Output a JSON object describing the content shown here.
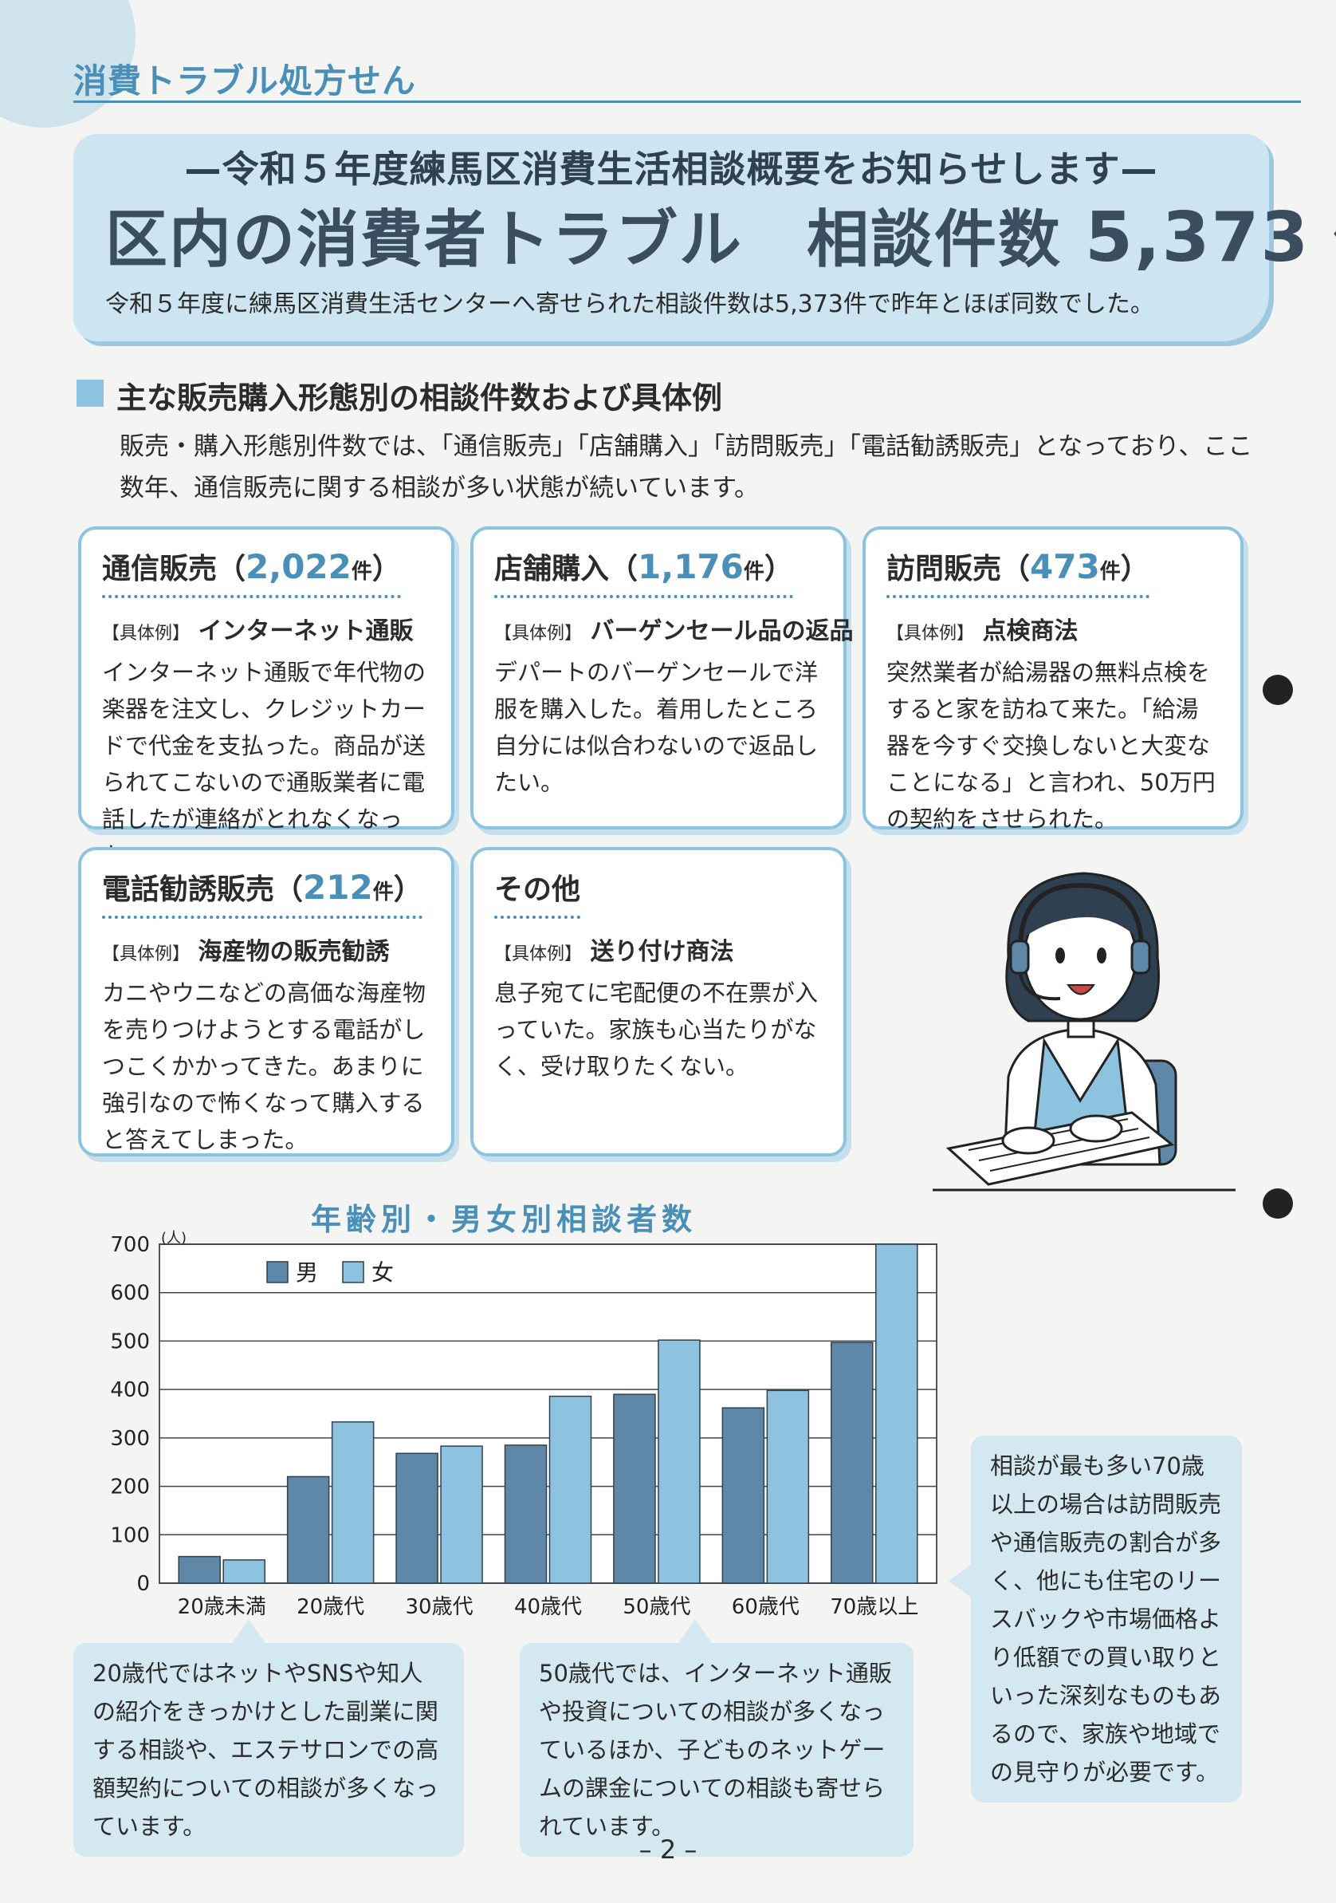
{
  "header": {
    "title": "消費トラブル処方せん"
  },
  "hero": {
    "subtitle": "—令和５年度練馬区消費生活相談概要をお知らせします—",
    "main_prefix": "区内の消費者トラブル　相談件数",
    "main_count": "5,373",
    "main_unit": "件",
    "description": "令和５年度に練馬区消費生活センターへ寄せられた相談件数は5,373件で昨年とほぼ同数でした。"
  },
  "section": {
    "title": "主な販売購入形態別の相談件数および具体例",
    "description": "販売・購入形態別件数では、「通信販売」「店舗購入」「訪問販売」「電話勧誘販売」となっており、ここ数年、通信販売に関する相談が多い状態が続いています。"
  },
  "cards": [
    {
      "title": "通信販売",
      "count": "2,022",
      "unit": "件",
      "example_tag": "【具体例】",
      "example": "インターネット通販",
      "body": "インターネット通販で年代物の楽器を注文し、クレジットカードで代金を支払った。商品が送られてこないので通販業者に電話したが連絡がとれなくなった。"
    },
    {
      "title": "店舗購入",
      "count": "1,176",
      "unit": "件",
      "example_tag": "【具体例】",
      "example": "バーゲンセール品の返品",
      "body": "デパートのバーゲンセールで洋服を購入した。着用したところ自分には似合わないので返品したい。"
    },
    {
      "title": "訪問販売",
      "count": "473",
      "unit": "件",
      "example_tag": "【具体例】",
      "example": "点検商法",
      "body": "突然業者が給湯器の無料点検をすると家を訪ねて来た。「給湯器を今すぐ交換しないと大変なことになる」と言われ、50万円の契約をさせられた。"
    },
    {
      "title": "電話勧誘販売",
      "count": "212",
      "unit": "件",
      "example_tag": "【具体例】",
      "example": "海産物の販売勧誘",
      "body": "カニやウニなどの高価な海産物を売りつけようとする電話がしつこくかかってきた。あまりに強引なので怖くなって購入すると答えてしまった。"
    },
    {
      "title": "その他",
      "count": "",
      "unit": "",
      "example_tag": "【具体例】",
      "example": "送り付け商法",
      "body": "息子宛てに宅配便の不在票が入っていた。家族も心当たりがなく、受け取りたくない。"
    }
  ],
  "chart_data": {
    "type": "bar",
    "title": "年齢別・男女別相談者数",
    "ylabel": "(人)",
    "xlabel": "",
    "ylim": [
      0,
      700
    ],
    "yticks": [
      "0",
      "100",
      "200",
      "300",
      "400",
      "500",
      "600",
      "700"
    ],
    "categories": [
      "20歳未満",
      "20歳代",
      "30歳代",
      "40歳代",
      "50歳代",
      "60歳代",
      "70歳以上"
    ],
    "series": [
      {
        "name": "男",
        "color": "#5f88a8",
        "values": [
          55,
          220,
          268,
          285,
          390,
          362,
          497
        ]
      },
      {
        "name": "女",
        "color": "#8ec3df",
        "values": [
          48,
          333,
          283,
          386,
          502,
          398,
          700
        ]
      }
    ],
    "grid": true,
    "legend": "top-left"
  },
  "callouts": {
    "left": "20歳代ではネットやSNSや知人の紹介をきっかけとした副業に関する相談や、エステサロンでの高額契約についての相談が多くなっています。",
    "middle": "50歳代では、インターネット通販や投資についての相談が多くなっているほか、子どものネットゲームの課金についての相談も寄せられています。",
    "right": "相談が最も多い70歳以上の場合は訪問販売や通信販売の割合が多く、他にも住宅のリースバックや市場価格より低額での買い取りといった深刻なものもあるので、家族や地域での見守りが必要です。"
  },
  "page_number": "– 2 –"
}
